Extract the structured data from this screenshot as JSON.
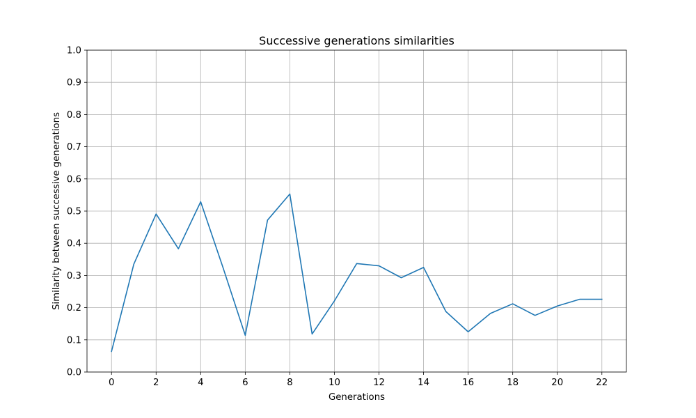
{
  "chart_data": {
    "type": "line",
    "title": "Successive generations similarities",
    "xlabel": "Generations",
    "ylabel": "Similarity between successive generations",
    "xlim": [
      -1.1,
      23.1
    ],
    "ylim": [
      0.0,
      1.0
    ],
    "xticks": [
      0,
      2,
      4,
      6,
      8,
      10,
      12,
      14,
      16,
      18,
      20,
      22
    ],
    "yticks": [
      0.0,
      0.1,
      0.2,
      0.3,
      0.4,
      0.5,
      0.6,
      0.7,
      0.8,
      0.9,
      1.0
    ],
    "ytick_labels": [
      "0.0",
      "0.1",
      "0.2",
      "0.3",
      "0.4",
      "0.5",
      "0.6",
      "0.7",
      "0.8",
      "0.9",
      "1.0"
    ],
    "grid": true,
    "series": [
      {
        "color": "#1f77b4",
        "x": [
          0,
          1,
          2,
          3,
          4,
          5,
          6,
          7,
          8,
          9,
          10,
          11,
          12,
          13,
          14,
          15,
          16,
          17,
          18,
          19,
          20,
          21,
          22
        ],
        "y": [
          0.064,
          0.335,
          0.491,
          0.383,
          0.529,
          0.325,
          0.114,
          0.472,
          0.553,
          0.118,
          0.221,
          0.337,
          0.33,
          0.293,
          0.325,
          0.188,
          0.125,
          0.182,
          0.212,
          0.176,
          0.205,
          0.226,
          0.226
        ]
      }
    ]
  }
}
